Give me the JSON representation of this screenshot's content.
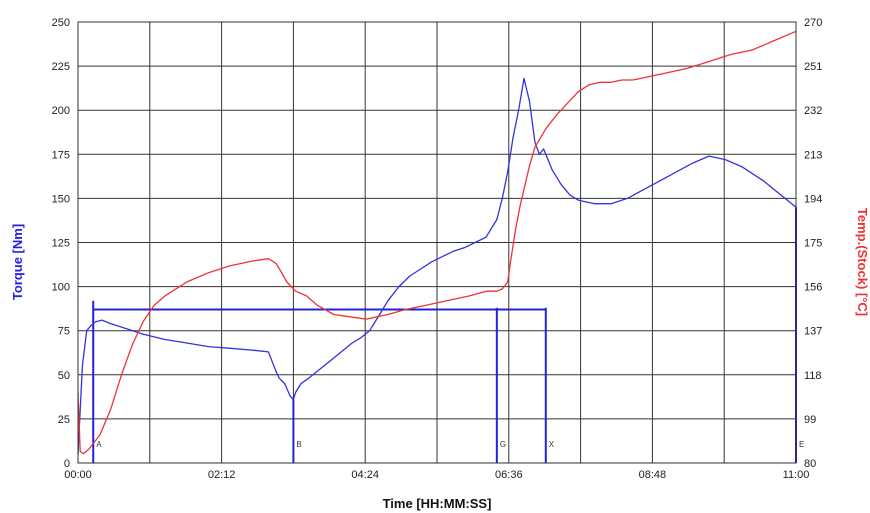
{
  "colors": {
    "torque": "#3333dd",
    "temperature": "#ee3333",
    "grid": "#333333",
    "marker": "#2222dd"
  },
  "chart_data": {
    "type": "line",
    "title": "",
    "xlabel": "Time [HH:MM:SS]",
    "ylabel_left": "Torque [Nm]",
    "ylabel_right": "Temp.(Stock) [°C]",
    "xlim": [
      0,
      660
    ],
    "ylim_left": [
      0,
      250
    ],
    "ylim_right": [
      80,
      270
    ],
    "grid": true,
    "x_ticks": [
      {
        "value": 0,
        "label": "00:00"
      },
      {
        "value": 132,
        "label": "02:12"
      },
      {
        "value": 264,
        "label": "04:24"
      },
      {
        "value": 396,
        "label": "06:36"
      },
      {
        "value": 528,
        "label": "08:48"
      },
      {
        "value": 660,
        "label": "11:00"
      }
    ],
    "y_left_ticks": [
      "0",
      "25",
      "50",
      "75",
      "100",
      "125",
      "150",
      "175",
      "200",
      "225",
      "250"
    ],
    "y_right_ticks": [
      "80",
      "99",
      "118",
      "137",
      "156",
      "175",
      "194",
      "213",
      "232",
      "251",
      "270"
    ],
    "series": [
      {
        "axis": "left",
        "x": [
          0,
          4,
          8,
          12,
          16,
          22,
          30,
          45,
          60,
          80,
          100,
          120,
          140,
          160,
          175,
          182,
          185,
          190,
          195,
          198,
          200,
          205,
          212,
          220,
          228,
          236,
          244,
          252,
          260,
          268,
          275,
          285,
          295,
          305,
          315,
          325,
          335,
          345,
          355,
          365,
          375,
          385,
          390,
          395,
          400,
          405,
          410,
          415,
          420,
          424,
          428,
          432,
          436,
          440,
          444,
          448,
          452,
          460,
          475,
          490,
          505,
          520,
          535,
          550,
          565,
          580,
          595,
          610,
          620,
          630,
          640,
          650,
          660
        ],
        "y": [
          5,
          55,
          75,
          78,
          80,
          81,
          79,
          76,
          73,
          70,
          68,
          66,
          65,
          64,
          63,
          52,
          48,
          45,
          38,
          36,
          40,
          45,
          48,
          52,
          56,
          60,
          64,
          68,
          71,
          75,
          82,
          92,
          100,
          106,
          110,
          114,
          117,
          120,
          122,
          125,
          128,
          138,
          150,
          165,
          185,
          200,
          218,
          205,
          182,
          175,
          178,
          172,
          166,
          162,
          158,
          155,
          152,
          149,
          147,
          147,
          150,
          155,
          160,
          165,
          170,
          174,
          172,
          168,
          164,
          160,
          155,
          150,
          145
        ]
      },
      {
        "axis": "right",
        "x": [
          0,
          2,
          5,
          10,
          20,
          30,
          40,
          50,
          60,
          70,
          80,
          100,
          120,
          140,
          160,
          175,
          182,
          186,
          192,
          200,
          210,
          220,
          235,
          250,
          265,
          275,
          285,
          300,
          320,
          340,
          360,
          375,
          385,
          390,
          395,
          398,
          402,
          406,
          410,
          415,
          420,
          430,
          440,
          450,
          460,
          470,
          480,
          490,
          500,
          510,
          520,
          530,
          540,
          560,
          580,
          600,
          620,
          640,
          660
        ],
        "y": [
          110,
          85,
          84,
          86,
          92,
          103,
          118,
          131,
          141,
          148,
          152,
          158,
          162,
          165,
          167,
          168,
          166,
          163,
          158,
          154,
          152,
          148,
          144,
          143,
          142,
          143,
          144,
          146,
          148,
          150,
          152,
          154,
          154,
          155,
          158,
          168,
          180,
          190,
          198,
          208,
          216,
          224,
          230,
          235,
          240,
          243,
          244,
          244,
          245,
          245,
          246,
          247,
          248,
          250,
          253,
          256,
          258,
          262,
          266
        ]
      }
    ],
    "markers": [
      {
        "label": "A",
        "x": 14,
        "torque": 92
      },
      {
        "label": "B",
        "x": 198,
        "torque": 36
      },
      {
        "label": "G",
        "x": 385,
        "torque": 88
      },
      {
        "label": "X",
        "x": 430,
        "torque": 88
      },
      {
        "label": "E",
        "x": 660,
        "torque": 145
      }
    ],
    "horizontal_reference": {
      "value": 87,
      "x_start": 14,
      "x_end": 430
    }
  }
}
